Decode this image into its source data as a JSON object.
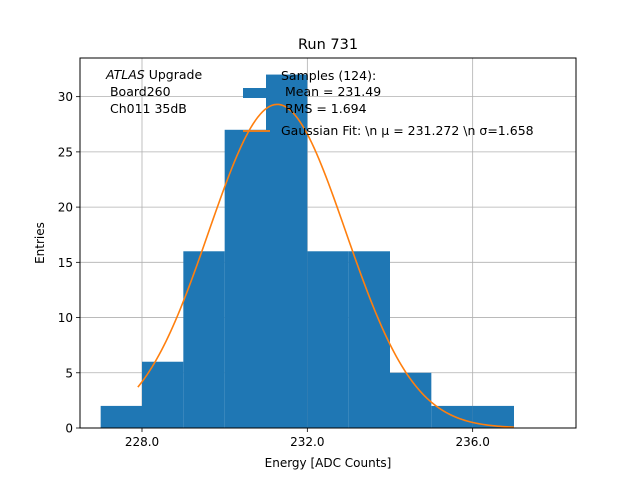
{
  "chart_data": {
    "type": "bar",
    "title": "Run 731",
    "xlabel": "Energy [ADC Counts]",
    "ylabel": "Entries",
    "xlim": [
      226.5,
      238.5
    ],
    "ylim": [
      0,
      33.5
    ],
    "grid": true,
    "xticks": [
      228.0,
      232.0,
      236.0
    ],
    "xtick_labels": [
      "228.0",
      "232.0",
      "236.0"
    ],
    "yticks": [
      0,
      5,
      10,
      15,
      20,
      25,
      30
    ],
    "bin_edges": [
      227,
      228,
      229,
      230,
      231,
      232,
      233,
      234,
      235,
      236,
      237
    ],
    "values": [
      2,
      6,
      16,
      27,
      32,
      16,
      16,
      5,
      2,
      2
    ],
    "fit_curve": {
      "name": "Gaussian Fit",
      "mu": 231.272,
      "sigma": 1.658,
      "amplitude": 29.3,
      "x_range": [
        227.9,
        237.0
      ]
    },
    "colors": {
      "bars": "#1f77b4",
      "fit": "#ff7f0e",
      "grid": "#b0b0b0"
    },
    "annotation_lines": [
      "ATLAS",
      " Upgrade",
      " Board260",
      " Ch011 35dB"
    ],
    "legend": {
      "placement": "top-right",
      "bar_entry_lines": [
        "Samples (124):",
        " Mean = 231.49",
        " RMS = 1.694"
      ],
      "fit_entry": "Gaussian Fit: \\n μ = 231.272 \\n σ=1.658"
    }
  }
}
